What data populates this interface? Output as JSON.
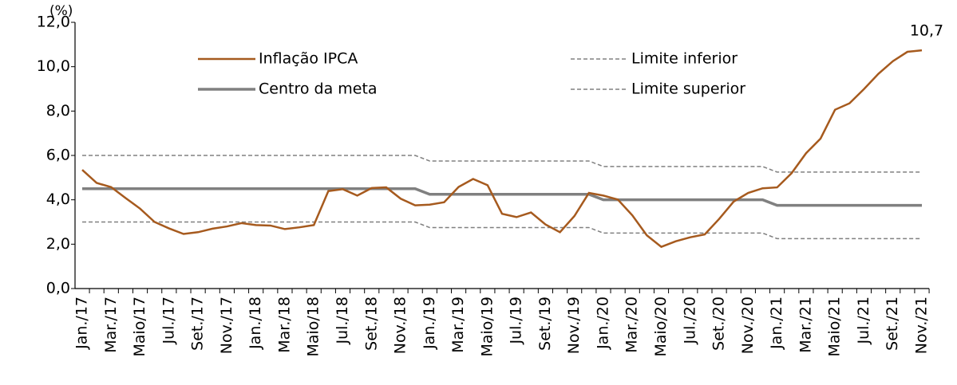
{
  "chart_data": {
    "type": "line",
    "y_label": "(%)",
    "categories": [
      "Jan./17",
      null,
      "Mar./17",
      null,
      "Maio/17",
      null,
      "Jul./17",
      null,
      "Set./17",
      null,
      "Nov./17",
      null,
      "Jan./18",
      null,
      "Mar./18",
      null,
      "Maio/18",
      null,
      "Jul./18",
      null,
      "Set./18",
      null,
      "Nov./18",
      null,
      "Jan./19",
      null,
      "Mar./19",
      null,
      "Maio/19",
      null,
      "Jul./19",
      null,
      "Set./19",
      null,
      "Nov./19",
      null,
      "Jan./20",
      null,
      "Mar./20",
      null,
      "Maio/20",
      null,
      "Jul./20",
      null,
      "Set./20",
      null,
      "Nov./20",
      null,
      "Jan./21",
      null,
      "Mar./21",
      null,
      "Maio/21",
      null,
      "Jul./21",
      null,
      "Set./21",
      null,
      "Nov./21"
    ],
    "series": [
      {
        "name": "Inflação IPCA",
        "color": "#a65a1e",
        "style": "solid",
        "width": 2.5,
        "values": [
          5.35,
          4.76,
          4.57,
          4.08,
          3.6,
          3.0,
          2.71,
          2.46,
          2.54,
          2.7,
          2.8,
          2.95,
          2.86,
          2.84,
          2.68,
          2.76,
          2.86,
          4.39,
          4.48,
          4.19,
          4.53,
          4.56,
          4.05,
          3.75,
          3.78,
          3.89,
          4.58,
          4.94,
          4.66,
          3.37,
          3.22,
          3.43,
          2.89,
          2.54,
          3.27,
          4.31,
          4.19,
          4.01,
          3.3,
          2.4,
          1.88,
          2.13,
          2.31,
          2.44,
          3.14,
          3.92,
          4.31,
          4.52,
          4.56,
          5.2,
          6.1,
          6.76,
          8.06,
          8.35,
          8.99,
          9.68,
          10.25,
          10.67,
          10.74
        ],
        "value_labels": [
          null,
          null,
          null,
          null,
          null,
          null,
          null,
          null,
          null,
          null,
          null,
          null,
          null,
          null,
          null,
          null,
          null,
          null,
          null,
          null,
          null,
          null,
          null,
          null,
          null,
          null,
          null,
          null,
          null,
          null,
          null,
          null,
          null,
          null,
          null,
          null,
          null,
          null,
          null,
          null,
          null,
          null,
          null,
          null,
          null,
          null,
          null,
          null,
          null,
          null,
          null,
          null,
          null,
          null,
          null,
          null,
          null,
          null,
          "10,7"
        ]
      },
      {
        "name": "Centro da meta",
        "color": "#808080",
        "style": "solid",
        "width": 3.5,
        "values": [
          4.5,
          4.5,
          4.5,
          4.5,
          4.5,
          4.5,
          4.5,
          4.5,
          4.5,
          4.5,
          4.5,
          4.5,
          4.5,
          4.5,
          4.5,
          4.5,
          4.5,
          4.5,
          4.5,
          4.5,
          4.5,
          4.5,
          4.5,
          4.5,
          4.25,
          4.25,
          4.25,
          4.25,
          4.25,
          4.25,
          4.25,
          4.25,
          4.25,
          4.25,
          4.25,
          4.25,
          4.0,
          4.0,
          4.0,
          4.0,
          4.0,
          4.0,
          4.0,
          4.0,
          4.0,
          4.0,
          4.0,
          4.0,
          3.75,
          3.75,
          3.75,
          3.75,
          3.75,
          3.75,
          3.75,
          3.75,
          3.75,
          3.75,
          3.75
        ]
      },
      {
        "name": "Limite inferior",
        "color": "#808080",
        "style": "dashed",
        "width": 1.5,
        "values": [
          3.0,
          3.0,
          3.0,
          3.0,
          3.0,
          3.0,
          3.0,
          3.0,
          3.0,
          3.0,
          3.0,
          3.0,
          3.0,
          3.0,
          3.0,
          3.0,
          3.0,
          3.0,
          3.0,
          3.0,
          3.0,
          3.0,
          3.0,
          3.0,
          2.75,
          2.75,
          2.75,
          2.75,
          2.75,
          2.75,
          2.75,
          2.75,
          2.75,
          2.75,
          2.75,
          2.75,
          2.5,
          2.5,
          2.5,
          2.5,
          2.5,
          2.5,
          2.5,
          2.5,
          2.5,
          2.5,
          2.5,
          2.5,
          2.25,
          2.25,
          2.25,
          2.25,
          2.25,
          2.25,
          2.25,
          2.25,
          2.25,
          2.25,
          2.25
        ]
      },
      {
        "name": "Limite superior",
        "color": "#808080",
        "style": "dashed",
        "width": 1.5,
        "values": [
          6.0,
          6.0,
          6.0,
          6.0,
          6.0,
          6.0,
          6.0,
          6.0,
          6.0,
          6.0,
          6.0,
          6.0,
          6.0,
          6.0,
          6.0,
          6.0,
          6.0,
          6.0,
          6.0,
          6.0,
          6.0,
          6.0,
          6.0,
          6.0,
          5.75,
          5.75,
          5.75,
          5.75,
          5.75,
          5.75,
          5.75,
          5.75,
          5.75,
          5.75,
          5.75,
          5.75,
          5.5,
          5.5,
          5.5,
          5.5,
          5.5,
          5.5,
          5.5,
          5.5,
          5.5,
          5.5,
          5.5,
          5.5,
          5.25,
          5.25,
          5.25,
          5.25,
          5.25,
          5.25,
          5.25,
          5.25,
          5.25,
          5.25,
          5.25
        ]
      }
    ],
    "ylim": [
      0,
      12
    ],
    "yticks": [
      {
        "value": 0,
        "label": "0,0"
      },
      {
        "value": 2,
        "label": "2,0"
      },
      {
        "value": 4,
        "label": "4,0"
      },
      {
        "value": 6,
        "label": "6,0"
      },
      {
        "value": 8,
        "label": "8,0"
      },
      {
        "value": 10,
        "label": "10,0"
      },
      {
        "value": 12,
        "label": "12,0"
      }
    ],
    "grid": false
  }
}
